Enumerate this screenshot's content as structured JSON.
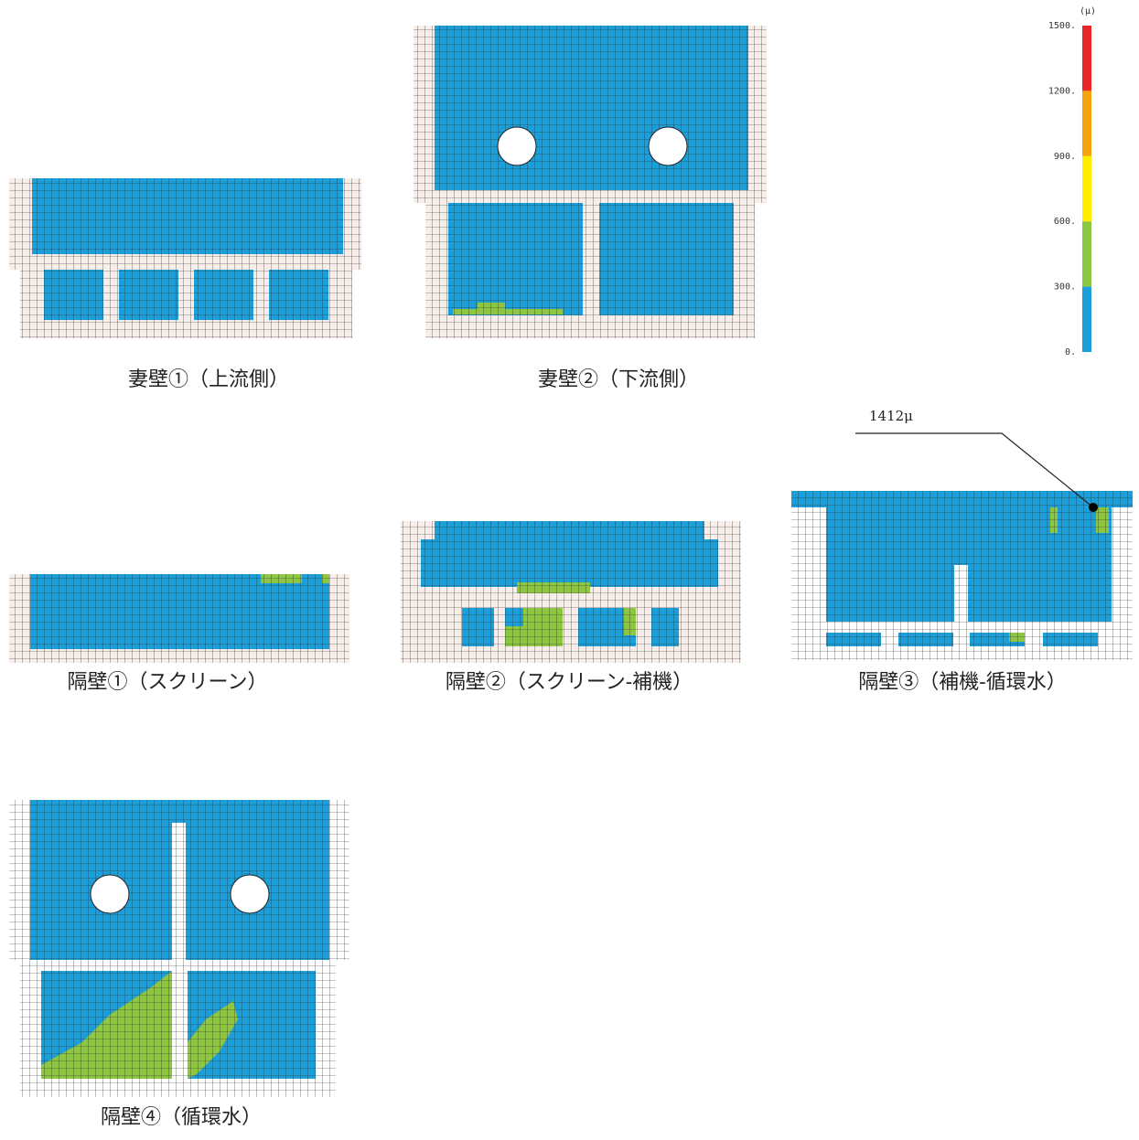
{
  "legend": {
    "unit": "(μ)",
    "levels": [
      {
        "label": "1500.",
        "color": "#e8262a"
      },
      {
        "label": "1200.",
        "color": "#f5a30f"
      },
      {
        "label": "900.",
        "color": "#ffee00"
      },
      {
        "label": "600.",
        "color": "#8dc63f"
      },
      {
        "label": "300.",
        "color": "#1a9fdb"
      },
      {
        "label": "0."
      }
    ]
  },
  "panels": [
    {
      "label": "妻壁①（上流側）"
    },
    {
      "label": "妻壁②（下流側）"
    },
    {
      "label": "隔壁①（スクリーン）"
    },
    {
      "label": "隔壁②（スクリーン-補機）"
    },
    {
      "label": "隔壁③（補機-循環水）",
      "annotation": "1412μ"
    },
    {
      "label": "隔壁④（循環水）"
    }
  ]
}
